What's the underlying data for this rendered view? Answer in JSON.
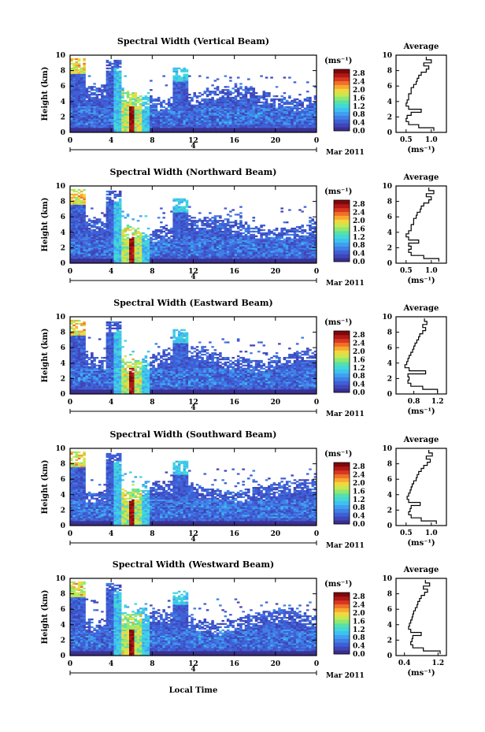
{
  "figure": {
    "xlabel": "Local Time",
    "date_label": "Mar 2011",
    "day_marker": "4",
    "colorbar_unit": "(ms⁻¹)",
    "average_title": "Average",
    "average_xlabel": "(ms⁻¹)"
  },
  "colormap": [
    "#3a2f8f",
    "#3f46b8",
    "#3f5fd6",
    "#3f7fe6",
    "#3fa0f0",
    "#3fc0f0",
    "#40d8d8",
    "#58e0a8",
    "#90e870",
    "#c8e850",
    "#f0d840",
    "#f8a830",
    "#f07028",
    "#d83820",
    "#b01818",
    "#800808"
  ],
  "chart_data": [
    {
      "type": "heatmap",
      "title": "Spectral Width (Vertical Beam)",
      "ylabel": "Height (km)",
      "x_ticks": [
        "0",
        "4",
        "8",
        "12",
        "16",
        "20",
        "0"
      ],
      "y_ticks": [
        "0",
        "2",
        "4",
        "6",
        "8",
        "10"
      ],
      "xlim": [
        0,
        24
      ],
      "ylim": [
        0,
        10
      ],
      "colorbar_ticks": [
        "0.0",
        "0.4",
        "0.8",
        "1.2",
        "1.6",
        "2.0",
        "2.4",
        "2.8"
      ],
      "colorbar_range": [
        0,
        3.0
      ],
      "average": {
        "x_ticks": [
          "0.5",
          "1.0"
        ],
        "xlim": [
          0.3,
          1.3
        ],
        "ylim": [
          0,
          10
        ],
        "height_km": [
          0.4,
          0.8,
          1.2,
          1.6,
          2.0,
          2.4,
          2.8,
          3.2,
          3.6,
          4.0,
          4.4,
          4.8,
          5.2,
          5.6,
          6.0,
          6.4,
          6.8,
          7.2,
          7.6,
          8.0,
          8.4,
          8.8,
          9.2,
          9.6
        ],
        "width_ms": [
          1.05,
          0.75,
          0.55,
          0.5,
          0.52,
          0.6,
          0.8,
          0.55,
          0.5,
          0.52,
          0.55,
          0.55,
          0.6,
          0.6,
          0.65,
          0.7,
          0.72,
          0.75,
          0.8,
          0.9,
          0.95,
          0.85,
          1.0,
          0.9
        ]
      }
    },
    {
      "type": "heatmap",
      "title": "Spectral Width (Northward Beam)",
      "ylabel": "Height (km)",
      "x_ticks": [
        "0",
        "4",
        "8",
        "12",
        "16",
        "20",
        "0"
      ],
      "y_ticks": [
        "0",
        "2",
        "4",
        "6",
        "8",
        "10"
      ],
      "xlim": [
        0,
        24
      ],
      "ylim": [
        0,
        10
      ],
      "colorbar_ticks": [
        "0.0",
        "0.4",
        "0.8",
        "1.2",
        "1.6",
        "2.0",
        "2.4",
        "2.8"
      ],
      "colorbar_range": [
        0,
        3.0
      ],
      "average": {
        "x_ticks": [
          "0.5",
          "1.0"
        ],
        "xlim": [
          0.3,
          1.3
        ],
        "ylim": [
          0,
          10
        ],
        "height_km": [
          0.4,
          0.8,
          1.2,
          1.6,
          2.0,
          2.4,
          2.8,
          3.2,
          3.6,
          4.0,
          4.4,
          4.8,
          5.2,
          5.6,
          6.0,
          6.4,
          6.8,
          7.2,
          7.6,
          8.0,
          8.4,
          8.8,
          9.2,
          9.6
        ],
        "width_ms": [
          1.15,
          0.85,
          0.6,
          0.55,
          0.6,
          0.55,
          0.75,
          0.55,
          0.5,
          0.55,
          0.6,
          0.6,
          0.65,
          0.65,
          0.7,
          0.72,
          0.78,
          0.8,
          0.85,
          0.95,
          1.0,
          0.9,
          1.05,
          0.95
        ]
      }
    },
    {
      "type": "heatmap",
      "title": "Spectral Width (Eastward Beam)",
      "ylabel": "Height (km)",
      "x_ticks": [
        "0",
        "4",
        "8",
        "12",
        "16",
        "20",
        "0"
      ],
      "y_ticks": [
        "0",
        "2",
        "4",
        "6",
        "8",
        "10"
      ],
      "xlim": [
        0,
        24
      ],
      "ylim": [
        0,
        10
      ],
      "colorbar_ticks": [
        "0.0",
        "0.4",
        "0.8",
        "1.2",
        "1.6",
        "2.0",
        "2.4",
        "2.8"
      ],
      "colorbar_range": [
        0,
        3.0
      ],
      "average": {
        "x_ticks": [
          "0.8",
          "1.2"
        ],
        "xlim": [
          0.5,
          1.35
        ],
        "ylim": [
          0,
          10
        ],
        "height_km": [
          0.4,
          0.8,
          1.2,
          1.6,
          2.0,
          2.4,
          2.8,
          3.2,
          3.6,
          4.0,
          4.4,
          4.8,
          5.2,
          5.6,
          6.0,
          6.4,
          6.8,
          7.2,
          7.6,
          8.0,
          8.4,
          8.8,
          9.2,
          9.6
        ],
        "width_ms": [
          1.2,
          0.95,
          0.75,
          0.7,
          0.72,
          0.7,
          1.0,
          0.72,
          0.65,
          0.68,
          0.7,
          0.72,
          0.75,
          0.78,
          0.8,
          0.82,
          0.85,
          0.88,
          0.9,
          0.95,
          1.0,
          0.95,
          1.02,
          0.98
        ]
      }
    },
    {
      "type": "heatmap",
      "title": "Spectral Width (Southward Beam)",
      "ylabel": "Height (km)",
      "x_ticks": [
        "0",
        "4",
        "8",
        "12",
        "16",
        "20",
        "0"
      ],
      "y_ticks": [
        "0",
        "2",
        "4",
        "6",
        "8",
        "10"
      ],
      "xlim": [
        0,
        24
      ],
      "ylim": [
        0,
        10
      ],
      "colorbar_ticks": [
        "0.0",
        "0.4",
        "0.8",
        "1.2",
        "1.6",
        "2.0",
        "2.4",
        "2.8"
      ],
      "colorbar_range": [
        0,
        3.0
      ],
      "average": {
        "x_ticks": [
          "0.5",
          "1.0"
        ],
        "xlim": [
          0.3,
          1.3
        ],
        "ylim": [
          0,
          10
        ],
        "height_km": [
          0.4,
          0.8,
          1.2,
          1.6,
          2.0,
          2.4,
          2.8,
          3.2,
          3.6,
          4.0,
          4.4,
          4.8,
          5.2,
          5.6,
          6.0,
          6.4,
          6.8,
          7.2,
          7.6,
          8.0,
          8.4,
          8.8,
          9.2,
          9.6
        ],
        "width_ms": [
          1.1,
          0.8,
          0.6,
          0.55,
          0.58,
          0.6,
          0.78,
          0.55,
          0.52,
          0.55,
          0.58,
          0.6,
          0.62,
          0.65,
          0.7,
          0.72,
          0.75,
          0.8,
          0.85,
          0.92,
          0.98,
          0.9,
          1.02,
          0.95
        ]
      }
    },
    {
      "type": "heatmap",
      "title": "Spectral Width (Westward Beam)",
      "ylabel": "Height (km)",
      "x_ticks": [
        "0",
        "4",
        "8",
        "12",
        "16",
        "20",
        "0"
      ],
      "y_ticks": [
        "0",
        "2",
        "4",
        "6",
        "8",
        "10"
      ],
      "xlim": [
        0,
        24
      ],
      "ylim": [
        0,
        10
      ],
      "colorbar_ticks": [
        "0.0",
        "0.4",
        "0.8",
        "1.2",
        "1.6",
        "2.0",
        "2.4",
        "2.8"
      ],
      "colorbar_range": [
        0,
        3.0
      ],
      "average": {
        "x_ticks": [
          "0.4",
          "1.2"
        ],
        "xlim": [
          0.2,
          1.4
        ],
        "ylim": [
          0,
          10
        ],
        "height_km": [
          0.4,
          0.8,
          1.2,
          1.6,
          2.0,
          2.4,
          2.8,
          3.2,
          3.6,
          4.0,
          4.4,
          4.8,
          5.2,
          5.6,
          6.0,
          6.4,
          6.8,
          7.2,
          7.6,
          8.0,
          8.4,
          8.8,
          9.2,
          9.6
        ],
        "width_ms": [
          1.25,
          0.85,
          0.6,
          0.55,
          0.58,
          0.6,
          0.8,
          0.55,
          0.5,
          0.52,
          0.55,
          0.58,
          0.6,
          0.62,
          0.66,
          0.7,
          0.72,
          0.76,
          0.8,
          0.88,
          0.95,
          0.85,
          1.0,
          0.9
        ]
      }
    }
  ]
}
